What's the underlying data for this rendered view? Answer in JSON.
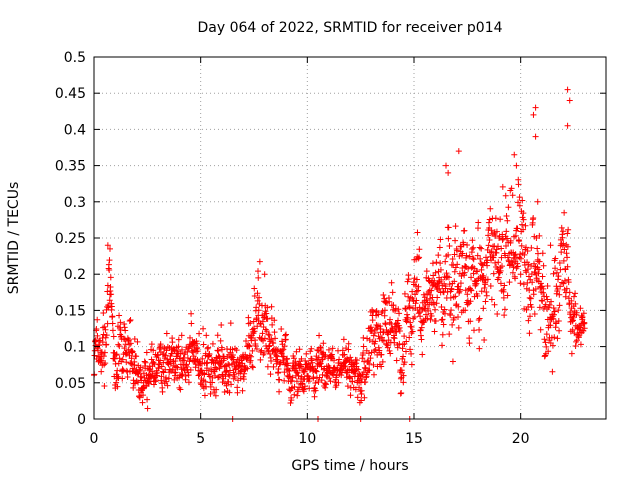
{
  "chart_data": {
    "type": "scatter",
    "title": "Day 064 of 2022, SRMTID for receiver p014",
    "xlabel": "GPS time / hours",
    "ylabel": "SRMTID / TECUs",
    "xlim": [
      0,
      24
    ],
    "ylim": [
      0,
      0.5
    ],
    "x_ticks": [
      0,
      5,
      10,
      15,
      20
    ],
    "x_tick_labels": [
      "0",
      "5",
      "10",
      "15",
      "20"
    ],
    "y_ticks": [
      0,
      0.05,
      0.1,
      0.15,
      0.2,
      0.25,
      0.3,
      0.35,
      0.4,
      0.45,
      0.5
    ],
    "y_tick_labels": [
      "0",
      "0.05",
      "0.1",
      "0.15",
      "0.2",
      "0.25",
      "0.3",
      "0.35",
      "0.4",
      "0.45",
      "0.5"
    ],
    "grid": true,
    "marker": "plus",
    "series": [
      {
        "name": "SRMTID",
        "color": "#ff0000",
        "profile": [
          {
            "t": 0.0,
            "mean": 0.095,
            "spread": 0.03
          },
          {
            "t": 0.5,
            "mean": 0.11,
            "spread": 0.04
          },
          {
            "t": 0.7,
            "mean": 0.17,
            "spread": 0.05
          },
          {
            "t": 1.0,
            "mean": 0.1,
            "spread": 0.035
          },
          {
            "t": 2.0,
            "mean": 0.085,
            "spread": 0.03
          },
          {
            "t": 2.3,
            "mean": 0.05,
            "spread": 0.025
          },
          {
            "t": 3.0,
            "mean": 0.07,
            "spread": 0.03
          },
          {
            "t": 4.0,
            "mean": 0.08,
            "spread": 0.03
          },
          {
            "t": 6.0,
            "mean": 0.075,
            "spread": 0.03
          },
          {
            "t": 7.0,
            "mean": 0.065,
            "spread": 0.025
          },
          {
            "t": 7.8,
            "mean": 0.14,
            "spread": 0.05
          },
          {
            "t": 8.3,
            "mean": 0.09,
            "spread": 0.035
          },
          {
            "t": 9.0,
            "mean": 0.065,
            "spread": 0.025
          },
          {
            "t": 10.0,
            "mean": 0.065,
            "spread": 0.025
          },
          {
            "t": 11.0,
            "mean": 0.075,
            "spread": 0.025
          },
          {
            "t": 12.5,
            "mean": 0.06,
            "spread": 0.025
          },
          {
            "t": 13.0,
            "mean": 0.11,
            "spread": 0.04
          },
          {
            "t": 14.0,
            "mean": 0.13,
            "spread": 0.04
          },
          {
            "t": 14.5,
            "mean": 0.1,
            "spread": 0.04
          },
          {
            "t": 15.0,
            "mean": 0.17,
            "spread": 0.05
          },
          {
            "t": 16.0,
            "mean": 0.17,
            "spread": 0.05
          },
          {
            "t": 17.0,
            "mean": 0.19,
            "spread": 0.06
          },
          {
            "t": 18.0,
            "mean": 0.18,
            "spread": 0.06
          },
          {
            "t": 19.0,
            "mean": 0.22,
            "spread": 0.06
          },
          {
            "t": 20.0,
            "mean": 0.23,
            "spread": 0.06
          },
          {
            "t": 21.0,
            "mean": 0.18,
            "spread": 0.05
          },
          {
            "t": 21.5,
            "mean": 0.14,
            "spread": 0.05
          },
          {
            "t": 22.0,
            "mean": 0.22,
            "spread": 0.06
          },
          {
            "t": 22.5,
            "mean": 0.13,
            "spread": 0.03
          },
          {
            "t": 22.8,
            "mean": 0.12,
            "spread": 0.02
          }
        ],
        "spikes": [
          {
            "x": 0.65,
            "y": 0.24
          },
          {
            "x": 0.75,
            "y": 0.235
          },
          {
            "x": 8.0,
            "y": 0.2
          },
          {
            "x": 7.7,
            "y": 0.195
          },
          {
            "x": 17.1,
            "y": 0.37
          },
          {
            "x": 16.5,
            "y": 0.35
          },
          {
            "x": 16.6,
            "y": 0.34
          },
          {
            "x": 19.7,
            "y": 0.365
          },
          {
            "x": 19.8,
            "y": 0.35
          },
          {
            "x": 20.6,
            "y": 0.42
          },
          {
            "x": 20.7,
            "y": 0.43
          },
          {
            "x": 20.7,
            "y": 0.39
          },
          {
            "x": 22.2,
            "y": 0.455
          },
          {
            "x": 22.3,
            "y": 0.44
          },
          {
            "x": 22.2,
            "y": 0.405
          },
          {
            "x": 21.4,
            "y": 0.24
          },
          {
            "x": 20.8,
            "y": 0.3
          },
          {
            "x": 6.5,
            "y": 0.0
          },
          {
            "x": 10.5,
            "y": 0.0
          },
          {
            "x": 12.5,
            "y": 0.0
          },
          {
            "x": 14.8,
            "y": 0.0
          }
        ],
        "sample_interval_hours": 0.0125,
        "points_per_sample": 1,
        "x_max": 23.0
      }
    ]
  }
}
